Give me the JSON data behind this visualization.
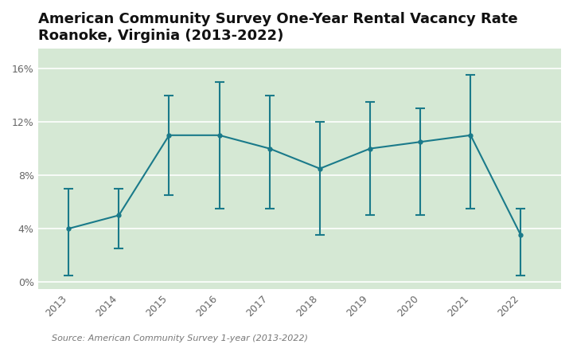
{
  "title": "American Community Survey One-Year Rental Vacancy Rate\nRoanoke, Virginia (2013-2022)",
  "years": [
    2013,
    2014,
    2015,
    2016,
    2017,
    2018,
    2019,
    2020,
    2021,
    2022
  ],
  "values": [
    4.0,
    5.0,
    11.0,
    11.0,
    10.0,
    8.5,
    10.0,
    10.5,
    11.0,
    3.5
  ],
  "err_lower": [
    3.5,
    2.5,
    4.5,
    5.5,
    4.5,
    5.0,
    5.0,
    5.5,
    5.5,
    3.0
  ],
  "err_upper": [
    3.0,
    2.0,
    3.0,
    4.0,
    4.0,
    3.5,
    3.5,
    2.5,
    4.5,
    2.0
  ],
  "line_color": "#1a7a8a",
  "marker_color": "#1a7a8a",
  "fig_background_color": "#ffffff",
  "plot_background_color": "#d5e8d4",
  "grid_color": "#ffffff",
  "ylabel_ticks": [
    "0%",
    "4%",
    "8%",
    "12%",
    "16%"
  ],
  "ytick_vals": [
    0,
    4,
    8,
    12,
    16
  ],
  "ylim": [
    -0.5,
    17.5
  ],
  "xlim": [
    2012.4,
    2022.8
  ],
  "source_text": "Source: American Community Survey 1-year (2013-2022)",
  "title_fontsize": 13,
  "tick_fontsize": 9,
  "source_fontsize": 8
}
